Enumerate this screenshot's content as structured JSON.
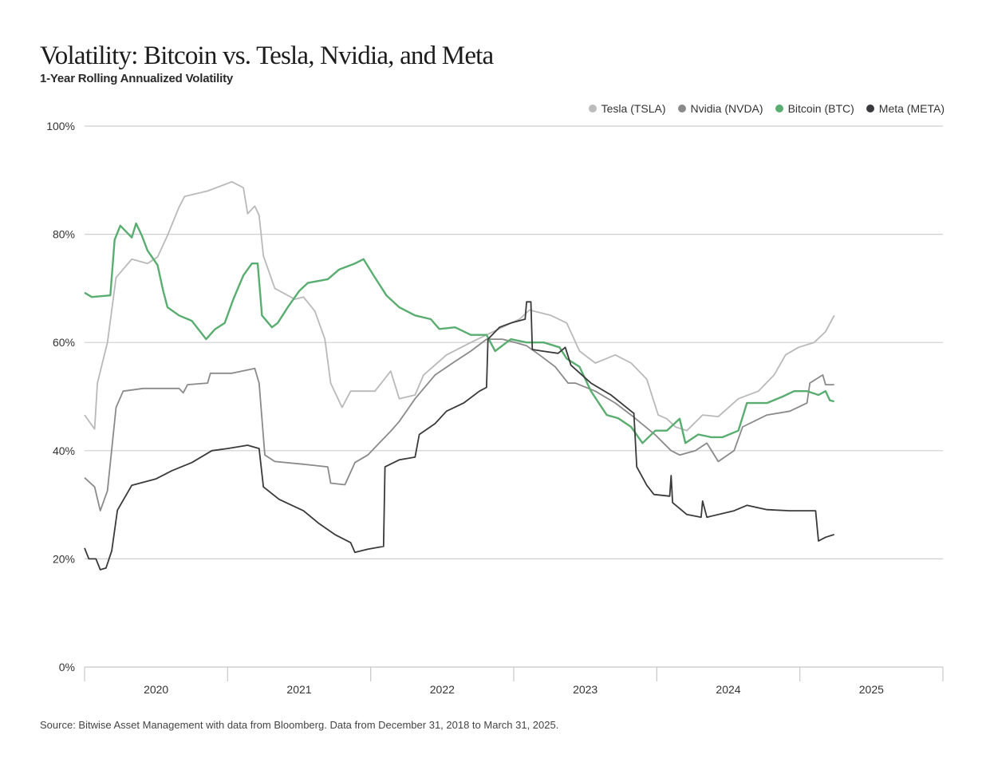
{
  "chart_data": {
    "type": "line",
    "title": "Volatility: Bitcoin vs. Tesla, Nvidia, and Meta",
    "subtitle": "1-Year Rolling Annualized Volatility",
    "xlabel": "",
    "ylabel": "",
    "ylim": [
      0,
      100
    ],
    "xlim": [
      2020.0,
      2026.0
    ],
    "y_ticks": [
      0,
      20,
      40,
      60,
      80,
      100
    ],
    "y_tick_labels": [
      "0%",
      "20%",
      "40%",
      "60%",
      "80%",
      "100%"
    ],
    "x_tick_labels": [
      "2020",
      "2021",
      "2022",
      "2023",
      "2024",
      "2025"
    ],
    "grid": true,
    "legend_position": "top-right",
    "source": "Source: Bitwise Asset Management with data from Bloomberg. Data from December 31, 2018 to March 31, 2025.",
    "series": [
      {
        "name": "Tesla (TSLA)",
        "color": "#b9b9b9",
        "points": [
          [
            2020.0,
            46.6
          ],
          [
            2020.07,
            44.0
          ],
          [
            2020.09,
            52.5
          ],
          [
            2020.16,
            60.0
          ],
          [
            2020.22,
            72.0
          ],
          [
            2020.33,
            75.4
          ],
          [
            2020.44,
            74.6
          ],
          [
            2020.51,
            75.8
          ],
          [
            2020.58,
            79.8
          ],
          [
            2020.66,
            85.0
          ],
          [
            2020.7,
            87.0
          ],
          [
            2020.86,
            88.0
          ],
          [
            2021.03,
            89.7
          ],
          [
            2021.11,
            88.6
          ],
          [
            2021.14,
            83.8
          ],
          [
            2021.19,
            85.2
          ],
          [
            2021.22,
            83.5
          ],
          [
            2021.25,
            76.0
          ],
          [
            2021.33,
            70.0
          ],
          [
            2021.47,
            68.0
          ],
          [
            2021.53,
            68.4
          ],
          [
            2021.61,
            65.8
          ],
          [
            2021.68,
            60.6
          ],
          [
            2021.72,
            52.5
          ],
          [
            2021.8,
            48.0
          ],
          [
            2021.86,
            51.0
          ],
          [
            2022.03,
            51.0
          ],
          [
            2022.14,
            54.7
          ],
          [
            2022.2,
            49.6
          ],
          [
            2022.31,
            50.3
          ],
          [
            2022.37,
            54.0
          ],
          [
            2022.53,
            57.7
          ],
          [
            2022.7,
            60.0
          ],
          [
            2022.81,
            61.4
          ],
          [
            2022.92,
            62.8
          ],
          [
            2023.04,
            64.3
          ],
          [
            2023.11,
            66.0
          ],
          [
            2023.26,
            65.0
          ],
          [
            2023.37,
            63.6
          ],
          [
            2023.46,
            58.4
          ],
          [
            2023.57,
            56.2
          ],
          [
            2023.71,
            57.7
          ],
          [
            2023.82,
            56.2
          ],
          [
            2023.93,
            53.2
          ],
          [
            2024.01,
            46.6
          ],
          [
            2024.07,
            45.9
          ],
          [
            2024.13,
            44.4
          ],
          [
            2024.21,
            43.7
          ],
          [
            2024.32,
            46.6
          ],
          [
            2024.43,
            46.3
          ],
          [
            2024.57,
            49.6
          ],
          [
            2024.71,
            51.0
          ],
          [
            2024.82,
            54.0
          ],
          [
            2024.9,
            57.7
          ],
          [
            2024.99,
            59.1
          ],
          [
            2025.1,
            60.0
          ],
          [
            2025.18,
            62.0
          ],
          [
            2025.24,
            65.0
          ]
        ]
      },
      {
        "name": "Nvidia (NVDA)",
        "color": "#8a8a8a",
        "points": [
          [
            2020.0,
            35.0
          ],
          [
            2020.07,
            33.3
          ],
          [
            2020.11,
            28.9
          ],
          [
            2020.16,
            32.6
          ],
          [
            2020.22,
            48.0
          ],
          [
            2020.27,
            51.0
          ],
          [
            2020.41,
            51.5
          ],
          [
            2020.66,
            51.5
          ],
          [
            2020.69,
            50.7
          ],
          [
            2020.72,
            52.2
          ],
          [
            2020.86,
            52.5
          ],
          [
            2020.88,
            54.3
          ],
          [
            2021.03,
            54.3
          ],
          [
            2021.19,
            55.2
          ],
          [
            2021.22,
            52.5
          ],
          [
            2021.26,
            39.2
          ],
          [
            2021.33,
            38.0
          ],
          [
            2021.53,
            37.5
          ],
          [
            2021.7,
            37.0
          ],
          [
            2021.72,
            34.0
          ],
          [
            2021.82,
            33.7
          ],
          [
            2021.89,
            37.8
          ],
          [
            2021.98,
            39.2
          ],
          [
            2022.06,
            41.4
          ],
          [
            2022.14,
            43.6
          ],
          [
            2022.2,
            45.4
          ],
          [
            2022.31,
            49.6
          ],
          [
            2022.45,
            54.0
          ],
          [
            2022.59,
            56.5
          ],
          [
            2022.7,
            58.4
          ],
          [
            2022.81,
            60.6
          ],
          [
            2022.92,
            60.6
          ],
          [
            2023.01,
            60.0
          ],
          [
            2023.09,
            59.4
          ],
          [
            2023.18,
            57.7
          ],
          [
            2023.29,
            55.5
          ],
          [
            2023.38,
            52.5
          ],
          [
            2023.43,
            52.5
          ],
          [
            2023.57,
            51.0
          ],
          [
            2023.71,
            48.8
          ],
          [
            2023.82,
            46.6
          ],
          [
            2023.99,
            42.9
          ],
          [
            2024.1,
            40.0
          ],
          [
            2024.16,
            39.2
          ],
          [
            2024.27,
            40.0
          ],
          [
            2024.35,
            41.4
          ],
          [
            2024.43,
            38.0
          ],
          [
            2024.54,
            40.0
          ],
          [
            2024.6,
            44.4
          ],
          [
            2024.77,
            46.6
          ],
          [
            2024.93,
            47.3
          ],
          [
            2025.05,
            48.8
          ],
          [
            2025.07,
            52.5
          ],
          [
            2025.16,
            54.0
          ],
          [
            2025.18,
            52.2
          ],
          [
            2025.24,
            52.2
          ]
        ]
      },
      {
        "name": "Bitcoin (BTC)",
        "color": "#5aad70",
        "points": [
          [
            2020.0,
            69.2
          ],
          [
            2020.05,
            68.4
          ],
          [
            2020.18,
            68.7
          ],
          [
            2020.21,
            79.0
          ],
          [
            2020.25,
            81.6
          ],
          [
            2020.29,
            80.5
          ],
          [
            2020.33,
            79.4
          ],
          [
            2020.36,
            82.0
          ],
          [
            2020.4,
            79.8
          ],
          [
            2020.44,
            77.0
          ],
          [
            2020.51,
            74.3
          ],
          [
            2020.55,
            69.5
          ],
          [
            2020.58,
            66.5
          ],
          [
            2020.66,
            65.0
          ],
          [
            2020.75,
            64.0
          ],
          [
            2020.85,
            60.6
          ],
          [
            2020.91,
            62.4
          ],
          [
            2020.98,
            63.6
          ],
          [
            2021.04,
            68.0
          ],
          [
            2021.11,
            72.4
          ],
          [
            2021.17,
            74.6
          ],
          [
            2021.21,
            74.6
          ],
          [
            2021.24,
            65.0
          ],
          [
            2021.31,
            62.8
          ],
          [
            2021.35,
            63.6
          ],
          [
            2021.42,
            66.5
          ],
          [
            2021.5,
            69.5
          ],
          [
            2021.56,
            71.0
          ],
          [
            2021.7,
            71.7
          ],
          [
            2021.78,
            73.5
          ],
          [
            2021.89,
            74.6
          ],
          [
            2021.95,
            75.4
          ],
          [
            2022.02,
            72.4
          ],
          [
            2022.11,
            68.7
          ],
          [
            2022.2,
            66.5
          ],
          [
            2022.31,
            65.0
          ],
          [
            2022.42,
            64.3
          ],
          [
            2022.48,
            62.5
          ],
          [
            2022.59,
            62.8
          ],
          [
            2022.7,
            61.4
          ],
          [
            2022.81,
            61.4
          ],
          [
            2022.87,
            58.4
          ],
          [
            2022.98,
            60.6
          ],
          [
            2023.09,
            60.0
          ],
          [
            2023.21,
            60.0
          ],
          [
            2023.32,
            59.1
          ],
          [
            2023.37,
            57.0
          ],
          [
            2023.46,
            55.5
          ],
          [
            2023.54,
            51.0
          ],
          [
            2023.65,
            46.6
          ],
          [
            2023.73,
            46.0
          ],
          [
            2023.82,
            44.4
          ],
          [
            2023.9,
            41.4
          ],
          [
            2023.99,
            43.7
          ],
          [
            2024.07,
            43.7
          ],
          [
            2024.16,
            45.9
          ],
          [
            2024.2,
            41.4
          ],
          [
            2024.29,
            43.0
          ],
          [
            2024.38,
            42.5
          ],
          [
            2024.46,
            42.5
          ],
          [
            2024.57,
            43.7
          ],
          [
            2024.63,
            48.8
          ],
          [
            2024.77,
            48.8
          ],
          [
            2024.88,
            50.0
          ],
          [
            2024.96,
            51.0
          ],
          [
            2025.05,
            51.0
          ],
          [
            2025.13,
            50.3
          ],
          [
            2025.18,
            51.0
          ],
          [
            2025.21,
            49.3
          ],
          [
            2025.24,
            49.1
          ]
        ]
      },
      {
        "name": "Meta (META)",
        "color": "#3a3a3c",
        "points": [
          [
            2020.0,
            22.0
          ],
          [
            2020.03,
            20.0
          ],
          [
            2020.08,
            20.0
          ],
          [
            2020.11,
            18.0
          ],
          [
            2020.15,
            18.3
          ],
          [
            2020.19,
            21.5
          ],
          [
            2020.23,
            29.0
          ],
          [
            2020.33,
            33.6
          ],
          [
            2020.5,
            34.8
          ],
          [
            2020.61,
            36.3
          ],
          [
            2020.75,
            37.8
          ],
          [
            2020.89,
            40.0
          ],
          [
            2021.0,
            40.4
          ],
          [
            2021.14,
            41.0
          ],
          [
            2021.22,
            40.4
          ],
          [
            2021.25,
            33.3
          ],
          [
            2021.36,
            31.0
          ],
          [
            2021.53,
            28.9
          ],
          [
            2021.64,
            26.5
          ],
          [
            2021.75,
            24.5
          ],
          [
            2021.86,
            23.0
          ],
          [
            2021.89,
            21.2
          ],
          [
            2021.98,
            21.8
          ],
          [
            2022.09,
            22.3
          ],
          [
            2022.1,
            37.0
          ],
          [
            2022.2,
            38.3
          ],
          [
            2022.31,
            38.8
          ],
          [
            2022.34,
            43.0
          ],
          [
            2022.45,
            45.0
          ],
          [
            2022.53,
            47.3
          ],
          [
            2022.65,
            48.8
          ],
          [
            2022.76,
            51.0
          ],
          [
            2022.81,
            51.7
          ],
          [
            2022.82,
            60.6
          ],
          [
            2022.9,
            62.8
          ],
          [
            2022.98,
            63.6
          ],
          [
            2023.08,
            64.3
          ],
          [
            2023.09,
            67.5
          ],
          [
            2023.12,
            67.5
          ],
          [
            2023.13,
            58.7
          ],
          [
            2023.2,
            58.4
          ],
          [
            2023.31,
            58.0
          ],
          [
            2023.36,
            59.1
          ],
          [
            2023.4,
            55.8
          ],
          [
            2023.54,
            52.5
          ],
          [
            2023.68,
            50.3
          ],
          [
            2023.82,
            47.3
          ],
          [
            2023.84,
            46.9
          ],
          [
            2023.86,
            37.0
          ],
          [
            2023.93,
            33.6
          ],
          [
            2023.98,
            31.9
          ],
          [
            2024.09,
            31.6
          ],
          [
            2024.1,
            35.4
          ],
          [
            2024.11,
            30.4
          ],
          [
            2024.21,
            28.2
          ],
          [
            2024.31,
            27.7
          ],
          [
            2024.32,
            30.7
          ],
          [
            2024.35,
            27.7
          ],
          [
            2024.54,
            28.9
          ],
          [
            2024.63,
            29.9
          ],
          [
            2024.77,
            29.1
          ],
          [
            2024.93,
            28.9
          ],
          [
            2025.11,
            28.9
          ],
          [
            2025.13,
            23.3
          ],
          [
            2025.18,
            24.0
          ],
          [
            2025.24,
            24.5
          ]
        ]
      }
    ]
  }
}
